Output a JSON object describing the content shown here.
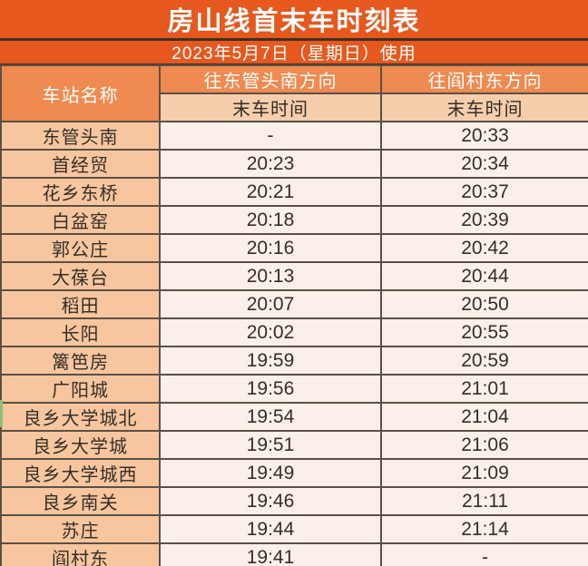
{
  "page": {
    "title": "房山线首末车时刻表",
    "subtitle": "2023年5月7日（星期日）使用"
  },
  "table": {
    "station_column_header": "车站名称",
    "direction_columns": [
      {
        "label": "往东管头南方向",
        "time_type": "末车时间"
      },
      {
        "label": "往阎村东方向",
        "time_type": "末车时间"
      }
    ],
    "rows": [
      {
        "station": "东管头南",
        "last_to_dongguantounan": "-",
        "last_to_yancundong": "20:33"
      },
      {
        "station": "首经贸",
        "last_to_dongguantounan": "20:23",
        "last_to_yancundong": "20:34"
      },
      {
        "station": "花乡东桥",
        "last_to_dongguantounan": "20:21",
        "last_to_yancundong": "20:37"
      },
      {
        "station": "白盆窑",
        "last_to_dongguantounan": "20:18",
        "last_to_yancundong": "20:39"
      },
      {
        "station": "郭公庄",
        "last_to_dongguantounan": "20:16",
        "last_to_yancundong": "20:42"
      },
      {
        "station": "大葆台",
        "last_to_dongguantounan": "20:13",
        "last_to_yancundong": "20:44"
      },
      {
        "station": "稻田",
        "last_to_dongguantounan": "20:07",
        "last_to_yancundong": "20:50"
      },
      {
        "station": "长阳",
        "last_to_dongguantounan": "20:02",
        "last_to_yancundong": "20:55"
      },
      {
        "station": "篱笆房",
        "last_to_dongguantounan": "19:59",
        "last_to_yancundong": "20:59"
      },
      {
        "station": "广阳城",
        "last_to_dongguantounan": "19:56",
        "last_to_yancundong": "21:01"
      },
      {
        "station": "良乡大学城北",
        "last_to_dongguantounan": "19:54",
        "last_to_yancundong": "21:04"
      },
      {
        "station": "良乡大学城",
        "last_to_dongguantounan": "19:51",
        "last_to_yancundong": "21:06"
      },
      {
        "station": "良乡大学城西",
        "last_to_dongguantounan": "19:49",
        "last_to_yancundong": "21:09"
      },
      {
        "station": "良乡南关",
        "last_to_dongguantounan": "19:46",
        "last_to_yancundong": "21:11"
      },
      {
        "station": "苏庄",
        "last_to_dongguantounan": "19:44",
        "last_to_yancundong": "21:14"
      },
      {
        "station": "阎村东",
        "last_to_dongguantounan": "19:41",
        "last_to_yancundong": "-"
      }
    ]
  },
  "colors": {
    "title_bar_bg": "#E6581E",
    "header_bg": "#EF8A50",
    "subheader_bg": "#F6CEAC",
    "station_bg": "#F7C69E",
    "cell_bg": "#FAF0E9",
    "grid_line": "#5A5045",
    "divider": "#3A3024",
    "title_text": "#FFFFFF",
    "cell_text": "#342E27",
    "green_marker": "#8DBE7C"
  }
}
